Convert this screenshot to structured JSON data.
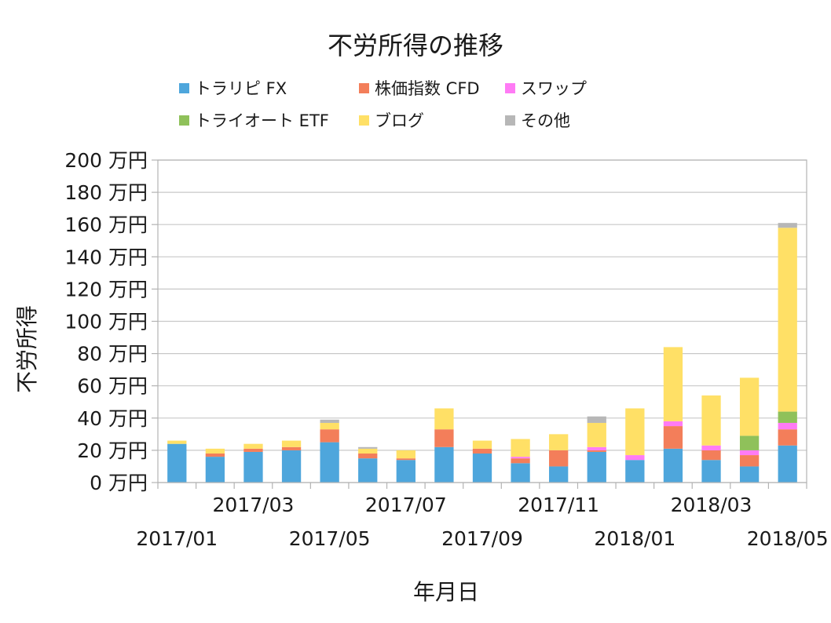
{
  "chart_data": {
    "type": "bar",
    "stacked": true,
    "title": "不労所得の推移",
    "xlabel": "年月日",
    "ylabel": "不労所得",
    "ylim": [
      0,
      200
    ],
    "y_step": 20,
    "y_unit_suffix": " 万円",
    "grid": true,
    "legend_position": "top",
    "categories": [
      "2017/01",
      "2017/02",
      "2017/03",
      "2017/04",
      "2017/05",
      "2017/06",
      "2017/07",
      "2017/08",
      "2017/09",
      "2017/10",
      "2017/11",
      "2017/12",
      "2018/01",
      "2018/02",
      "2018/03",
      "2018/04",
      "2018/05"
    ],
    "tick_labels_upper": [
      "2017/03",
      "2017/07",
      "2017/11",
      "2018/03"
    ],
    "tick_labels_lower": [
      "2017/01",
      "2017/05",
      "2017/09",
      "2018/01",
      "2018/05"
    ],
    "series": [
      {
        "name": "トラリピ FX",
        "color": "#4EA6DC",
        "values": [
          24,
          16,
          19,
          20,
          25,
          15,
          14,
          22,
          18,
          12,
          10,
          19,
          14,
          21,
          14,
          10,
          23
        ]
      },
      {
        "name": "株価指数 CFD",
        "color": "#F37E5A",
        "values": [
          0,
          2,
          2,
          2,
          8,
          3,
          1,
          11,
          3,
          3,
          10,
          1,
          0,
          14,
          6,
          7,
          10
        ]
      },
      {
        "name": "スワップ",
        "color": "#FF7BF5",
        "values": [
          0,
          0,
          0,
          0,
          0,
          0,
          0,
          0,
          0,
          1,
          0,
          2,
          3,
          3,
          3,
          3,
          4
        ]
      },
      {
        "name": "トライオート ETF",
        "color": "#8FC15A",
        "values": [
          0,
          0,
          0,
          0,
          0,
          0,
          0,
          0,
          0,
          0,
          0,
          0,
          0,
          0,
          0,
          9,
          7
        ]
      },
      {
        "name": "ブログ",
        "color": "#FFE066",
        "values": [
          2,
          3,
          3,
          4,
          4,
          3,
          5,
          13,
          5,
          11,
          10,
          15,
          29,
          46,
          31,
          36,
          114
        ]
      },
      {
        "name": "その他",
        "color": "#B7B7B7",
        "values": [
          0,
          0,
          0,
          0,
          2,
          1,
          0,
          0,
          0,
          0,
          0,
          4,
          0,
          0,
          0,
          0,
          3
        ]
      }
    ]
  }
}
